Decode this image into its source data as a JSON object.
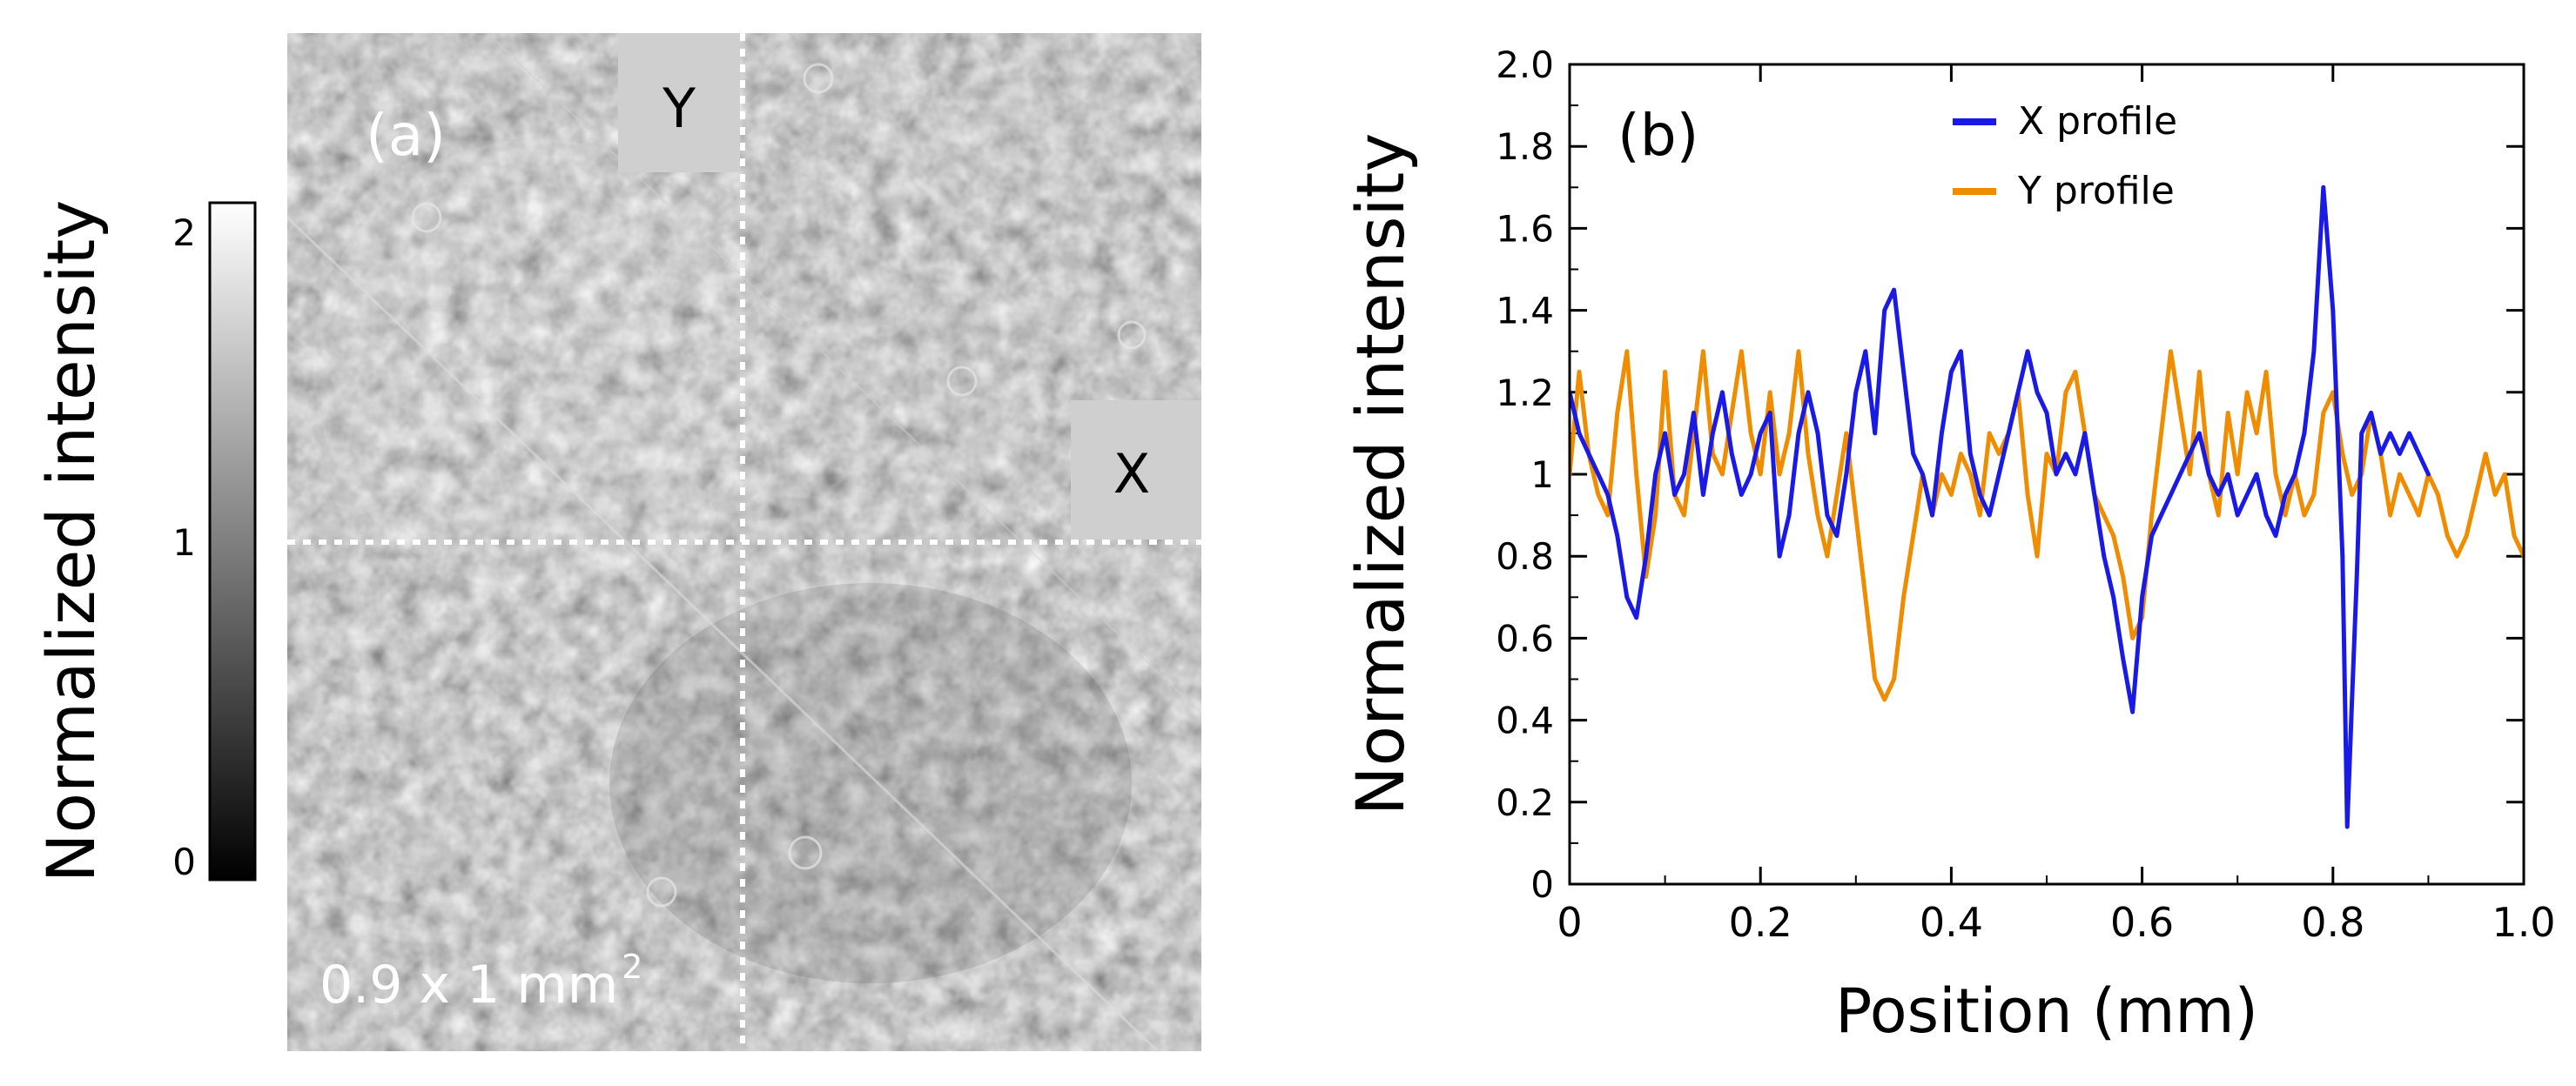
{
  "panel_a": {
    "label": "(a)",
    "scale_text": "0.9 x 1 mm",
    "scale_superscript": "2",
    "marker_y": "Y",
    "marker_x": "X",
    "colorbar": {
      "label": "Normalized intensity",
      "ticks": [
        "2",
        "1",
        "0"
      ],
      "range": [
        0,
        2
      ]
    }
  },
  "chart_data": {
    "type": "line",
    "panel_label": "(b)",
    "xlabel": "Position (mm)",
    "ylabel": "Normalized intensity",
    "xlim": [
      0,
      1.0
    ],
    "ylim": [
      0,
      2.0
    ],
    "xticks": [
      "0",
      "0.2",
      "0.4",
      "0.6",
      "0.8",
      "1.0"
    ],
    "yticks": [
      "0",
      "0.2",
      "0.4",
      "0.6",
      "0.8",
      "1",
      "1.2",
      "1.4",
      "1.6",
      "1.8",
      "2.0"
    ],
    "legend": "top-center",
    "series": [
      {
        "name": "X profile",
        "color": "#1a1ae6",
        "x": [
          0,
          0.01,
          0.02,
          0.03,
          0.04,
          0.05,
          0.06,
          0.07,
          0.08,
          0.09,
          0.1,
          0.11,
          0.12,
          0.13,
          0.14,
          0.15,
          0.16,
          0.17,
          0.18,
          0.19,
          0.2,
          0.21,
          0.22,
          0.23,
          0.24,
          0.25,
          0.26,
          0.27,
          0.28,
          0.29,
          0.3,
          0.31,
          0.32,
          0.33,
          0.34,
          0.35,
          0.36,
          0.37,
          0.38,
          0.39,
          0.4,
          0.41,
          0.42,
          0.43,
          0.44,
          0.45,
          0.46,
          0.47,
          0.48,
          0.49,
          0.5,
          0.51,
          0.52,
          0.53,
          0.54,
          0.55,
          0.56,
          0.57,
          0.58,
          0.59,
          0.6,
          0.61,
          0.62,
          0.63,
          0.64,
          0.65,
          0.66,
          0.67,
          0.68,
          0.69,
          0.7,
          0.71,
          0.72,
          0.73,
          0.74,
          0.75,
          0.76,
          0.77,
          0.78,
          0.79,
          0.8,
          0.81,
          0.815,
          0.82,
          0.825,
          0.83,
          0.84,
          0.85,
          0.86,
          0.87,
          0.88,
          0.89,
          0.9
        ],
        "y": [
          1.2,
          1.1,
          1.05,
          1.0,
          0.95,
          0.85,
          0.7,
          0.65,
          0.8,
          1.0,
          1.1,
          0.95,
          1.0,
          1.15,
          0.95,
          1.1,
          1.2,
          1.05,
          0.95,
          1.0,
          1.1,
          1.15,
          0.8,
          0.9,
          1.1,
          1.2,
          1.1,
          0.9,
          0.85,
          1.0,
          1.2,
          1.3,
          1.1,
          1.4,
          1.45,
          1.25,
          1.05,
          1.0,
          0.9,
          1.1,
          1.25,
          1.3,
          1.05,
          0.95,
          0.9,
          1.0,
          1.1,
          1.2,
          1.3,
          1.2,
          1.15,
          1.0,
          1.05,
          1.0,
          1.1,
          0.95,
          0.8,
          0.7,
          0.55,
          0.42,
          0.7,
          0.85,
          0.9,
          0.95,
          1.0,
          1.05,
          1.1,
          1.0,
          0.95,
          1.0,
          0.9,
          0.95,
          1.0,
          0.9,
          0.85,
          0.95,
          1.0,
          1.1,
          1.3,
          1.7,
          1.4,
          0.8,
          0.14,
          0.45,
          0.75,
          1.1,
          1.15,
          1.05,
          1.1,
          1.05,
          1.1,
          1.05,
          1.0
        ]
      },
      {
        "name": "Y profile",
        "color": "#f08c00",
        "x": [
          0,
          0.01,
          0.02,
          0.03,
          0.04,
          0.05,
          0.06,
          0.07,
          0.08,
          0.09,
          0.1,
          0.11,
          0.12,
          0.13,
          0.14,
          0.15,
          0.16,
          0.17,
          0.18,
          0.19,
          0.2,
          0.21,
          0.22,
          0.23,
          0.24,
          0.25,
          0.26,
          0.27,
          0.28,
          0.29,
          0.3,
          0.31,
          0.32,
          0.33,
          0.34,
          0.35,
          0.36,
          0.37,
          0.38,
          0.39,
          0.4,
          0.41,
          0.42,
          0.43,
          0.44,
          0.45,
          0.46,
          0.47,
          0.48,
          0.49,
          0.5,
          0.51,
          0.52,
          0.53,
          0.54,
          0.55,
          0.56,
          0.57,
          0.58,
          0.59,
          0.6,
          0.61,
          0.62,
          0.63,
          0.64,
          0.65,
          0.66,
          0.67,
          0.68,
          0.69,
          0.7,
          0.71,
          0.72,
          0.73,
          0.74,
          0.75,
          0.76,
          0.77,
          0.78,
          0.79,
          0.8,
          0.81,
          0.82,
          0.83,
          0.84,
          0.85,
          0.86,
          0.87,
          0.88,
          0.89,
          0.9,
          0.91,
          0.92,
          0.93,
          0.94,
          0.95,
          0.96,
          0.97,
          0.98,
          0.99,
          1.0
        ],
        "y": [
          1.0,
          1.25,
          1.05,
          0.95,
          0.9,
          1.15,
          1.3,
          1.0,
          0.75,
          0.9,
          1.25,
          0.95,
          0.9,
          1.1,
          1.3,
          1.05,
          1.0,
          1.15,
          1.3,
          1.1,
          1.0,
          1.2,
          1.0,
          1.1,
          1.3,
          1.05,
          0.9,
          0.8,
          0.95,
          1.1,
          0.9,
          0.7,
          0.5,
          0.45,
          0.5,
          0.7,
          0.85,
          1.0,
          0.9,
          1.0,
          0.95,
          1.05,
          1.0,
          0.9,
          1.1,
          1.05,
          1.1,
          1.2,
          0.95,
          0.8,
          1.05,
          1.0,
          1.2,
          1.25,
          1.1,
          0.95,
          0.9,
          0.85,
          0.75,
          0.6,
          0.65,
          0.9,
          1.1,
          1.3,
          1.15,
          1.0,
          1.25,
          1.0,
          0.9,
          1.15,
          1.0,
          1.2,
          1.1,
          1.25,
          1.0,
          0.9,
          1.0,
          0.9,
          0.95,
          1.15,
          1.2,
          1.05,
          0.95,
          1.0,
          1.15,
          1.05,
          0.9,
          1.0,
          0.95,
          0.9,
          1.0,
          0.95,
          0.85,
          0.8,
          0.85,
          0.95,
          1.05,
          0.95,
          1.0,
          0.85,
          0.8
        ]
      }
    ]
  }
}
